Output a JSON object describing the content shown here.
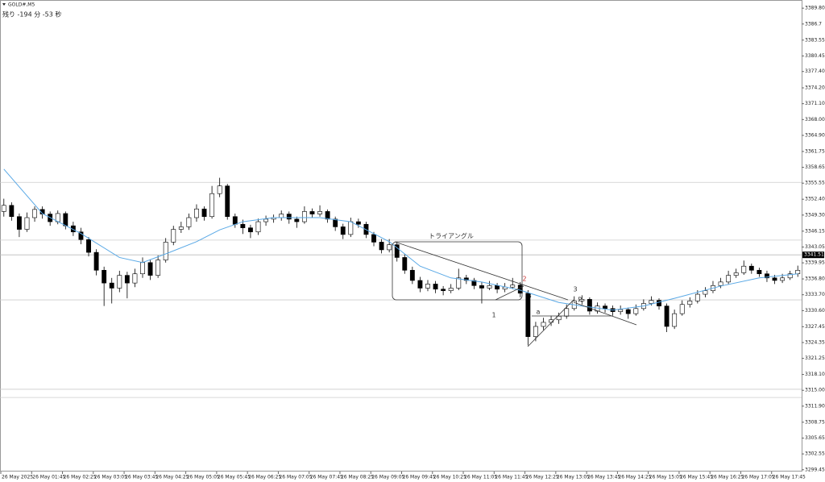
{
  "header": {
    "symbol": "GOLD#,M5",
    "countdown": "残り -194 分 -53 秒"
  },
  "chart_data": {
    "type": "candlestick",
    "ylim": [
      3299.1,
      3391.4
    ],
    "xlim": [
      -0.5,
      103.5
    ],
    "yticks": [
      {
        "value": 3389.8,
        "label": "3389.80"
      },
      3386.7,
      3383.55,
      3380.45,
      {
        "value": 3377.4,
        "label": "3377.40"
      },
      {
        "value": 3374.2,
        "label": "3374.20"
      },
      {
        "value": 3371.1,
        "label": "3371.10"
      },
      {
        "value": 3368,
        "label": "3368.00"
      },
      {
        "value": 3364.9,
        "label": "3364.90"
      },
      3361.75,
      3358.65,
      3355.55,
      {
        "value": 3352.4,
        "label": "3352.40"
      },
      {
        "value": 3349.3,
        "label": "3349.30"
      },
      3346.15,
      3343.05,
      3339.95,
      {
        "value": 3336.8,
        "label": "3336.80"
      },
      {
        "value": 3333.7,
        "label": "3333.70"
      },
      {
        "value": 3330.6,
        "label": "3330.60"
      },
      3327.45,
      3324.35,
      3321.25,
      {
        "value": 3318.1,
        "label": "3318.10"
      },
      {
        "value": 3315,
        "label": "3315.00"
      },
      {
        "value": 3311.9,
        "label": "3311.90"
      },
      3308.75,
      3305.65,
      3302.55,
      3299.45
    ],
    "xticks": [
      {
        "value": 0,
        "label": "26 May 2025"
      },
      {
        "value": 4,
        "label": "26 May 01:45"
      },
      {
        "value": 8,
        "label": "26 May 02:25"
      },
      {
        "value": 12,
        "label": "26 May 03:05"
      },
      {
        "value": 16,
        "label": "26 May 03:45"
      },
      {
        "value": 20,
        "label": "26 May 04:25"
      },
      {
        "value": 24,
        "label": "26 May 05:05"
      },
      {
        "value": 28,
        "label": "26 May 05:45"
      },
      {
        "value": 32,
        "label": "26 May 06:25"
      },
      {
        "value": 36,
        "label": "26 May 07:05"
      },
      {
        "value": 40,
        "label": "26 May 07:45"
      },
      {
        "value": 44,
        "label": "26 May 08:25"
      },
      {
        "value": 48,
        "label": "26 May 09:05"
      },
      {
        "value": 52,
        "label": "26 May 09:45"
      },
      {
        "value": 56,
        "label": "26 May 10:25"
      },
      {
        "value": 60,
        "label": "26 May 11:05"
      },
      {
        "value": 64,
        "label": "26 May 11:45"
      },
      {
        "value": 68,
        "label": "26 May 12:25"
      },
      {
        "value": 72,
        "label": "26 May 13:05"
      },
      {
        "value": 76,
        "label": "26 May 13:45"
      },
      {
        "value": 80,
        "label": "26 May 14:25"
      },
      {
        "value": 84,
        "label": "26 May 15:05"
      },
      {
        "value": 88,
        "label": "26 May 15:45"
      },
      {
        "value": 92,
        "label": "26 May 16:25"
      },
      {
        "value": 96,
        "label": "26 May 17:05"
      },
      {
        "value": 100,
        "label": "26 May 17:45"
      }
    ],
    "ohlc": [
      [
        3350.0,
        3352.5,
        3349.0,
        3351.2
      ],
      [
        3351.2,
        3351.8,
        3348.2,
        3349.0
      ],
      [
        3349.0,
        3349.6,
        3345.0,
        3346.5
      ],
      [
        3346.5,
        3349.8,
        3346.0,
        3348.8
      ],
      [
        3348.8,
        3351.0,
        3348.0,
        3350.4
      ],
      [
        3350.4,
        3351.0,
        3348.6,
        3349.5
      ],
      [
        3349.5,
        3350.0,
        3347.2,
        3348.0
      ],
      [
        3348.0,
        3350.2,
        3347.5,
        3349.6
      ],
      [
        3349.6,
        3350.0,
        3346.5,
        3347.2
      ],
      [
        3347.2,
        3348.0,
        3345.2,
        3346.0
      ],
      [
        3346.0,
        3346.8,
        3343.6,
        3344.5
      ],
      [
        3344.5,
        3345.0,
        3341.2,
        3342.0
      ],
      [
        3342.0,
        3342.6,
        3337.5,
        3338.5
      ],
      [
        3338.5,
        3339.2,
        3331.5,
        3336.0
      ],
      [
        3336.0,
        3337.0,
        3332.0,
        3335.0
      ],
      [
        3335.0,
        3338.4,
        3334.2,
        3337.5
      ],
      [
        3337.5,
        3338.2,
        3333.0,
        3336.0
      ],
      [
        3336.0,
        3338.8,
        3335.2,
        3337.8
      ],
      [
        3337.8,
        3341.0,
        3337.0,
        3340.0
      ],
      [
        3340.0,
        3340.6,
        3336.6,
        3337.5
      ],
      [
        3337.5,
        3341.4,
        3337.0,
        3340.5
      ],
      [
        3340.5,
        3344.8,
        3340.0,
        3344.0
      ],
      [
        3344.0,
        3347.2,
        3343.4,
        3346.5
      ],
      [
        3346.5,
        3348.0,
        3345.8,
        3347.0
      ],
      [
        3347.0,
        3349.6,
        3346.4,
        3348.8
      ],
      [
        3348.8,
        3351.4,
        3348.0,
        3350.5
      ],
      [
        3350.5,
        3351.0,
        3348.2,
        3349.0
      ],
      [
        3349.0,
        3355.0,
        3348.6,
        3353.5
      ],
      [
        3353.5,
        3356.6,
        3352.8,
        3355.0
      ],
      [
        3355.0,
        3355.4,
        3348.4,
        3349.0
      ],
      [
        3349.0,
        3349.6,
        3346.8,
        3347.5
      ],
      [
        3347.5,
        3348.4,
        3345.6,
        3346.8
      ],
      [
        3346.8,
        3347.4,
        3344.8,
        3346.0
      ],
      [
        3346.0,
        3348.6,
        3345.4,
        3348.0
      ],
      [
        3348.0,
        3349.2,
        3347.2,
        3348.5
      ],
      [
        3348.5,
        3349.4,
        3347.8,
        3348.8
      ],
      [
        3348.8,
        3350.2,
        3348.2,
        3349.5
      ],
      [
        3349.5,
        3350.0,
        3347.6,
        3348.5
      ],
      [
        3348.5,
        3349.0,
        3346.8,
        3348.0
      ],
      [
        3348.0,
        3351.0,
        3347.6,
        3350.0
      ],
      [
        3350.0,
        3350.6,
        3348.8,
        3349.5
      ],
      [
        3349.5,
        3351.2,
        3349.0,
        3350.0
      ],
      [
        3350.0,
        3350.4,
        3347.8,
        3348.5
      ],
      [
        3348.5,
        3349.0,
        3346.2,
        3347.0
      ],
      [
        3347.0,
        3347.6,
        3344.6,
        3345.5
      ],
      [
        3345.5,
        3348.8,
        3345.0,
        3348.0
      ],
      [
        3348.0,
        3348.6,
        3346.8,
        3347.5
      ],
      [
        3347.5,
        3348.0,
        3344.8,
        3345.5
      ],
      [
        3345.5,
        3346.0,
        3343.2,
        3344.0
      ],
      [
        3344.0,
        3344.6,
        3341.8,
        3342.5
      ],
      [
        3342.5,
        3344.6,
        3342.0,
        3343.5
      ],
      [
        3343.5,
        3344.0,
        3340.2,
        3341.0
      ],
      [
        3341.0,
        3341.6,
        3337.8,
        3338.5
      ],
      [
        3338.5,
        3339.2,
        3335.8,
        3336.5
      ],
      [
        3336.5,
        3337.2,
        3334.2,
        3335.0
      ],
      [
        3335.0,
        3336.6,
        3334.4,
        3335.8
      ],
      [
        3335.8,
        3336.4,
        3334.0,
        3334.8
      ],
      [
        3334.8,
        3335.4,
        3333.6,
        3334.5
      ],
      [
        3334.5,
        3335.8,
        3334.0,
        3335.0
      ],
      [
        3335.0,
        3338.8,
        3334.6,
        3337.0
      ],
      [
        3337.0,
        3337.6,
        3335.8,
        3336.5
      ],
      [
        3336.5,
        3337.0,
        3334.8,
        3335.5
      ],
      [
        3335.5,
        3336.2,
        3332.0,
        3335.0
      ],
      [
        3335.0,
        3336.4,
        3334.6,
        3335.5
      ],
      [
        3335.5,
        3336.0,
        3334.0,
        3334.8
      ],
      [
        3334.8,
        3336.0,
        3334.2,
        3335.2
      ],
      [
        3335.2,
        3337.0,
        3334.8,
        3335.6
      ],
      [
        3335.6,
        3336.2,
        3333.2,
        3334.0
      ],
      [
        3334.0,
        3334.6,
        3323.8,
        3325.5
      ],
      [
        3325.5,
        3328.4,
        3324.6,
        3327.5
      ],
      [
        3327.5,
        3329.2,
        3326.8,
        3328.3
      ],
      [
        3328.3,
        3329.6,
        3327.6,
        3328.8
      ],
      [
        3328.8,
        3330.2,
        3328.0,
        3329.5
      ],
      [
        3329.5,
        3331.8,
        3329.0,
        3331.0
      ],
      [
        3331.0,
        3333.4,
        3330.6,
        3332.5
      ],
      [
        3332.5,
        3333.6,
        3331.8,
        3332.8
      ],
      [
        3332.8,
        3333.2,
        3329.8,
        3330.5
      ],
      [
        3330.5,
        3332.2,
        3330.0,
        3331.5
      ],
      [
        3331.5,
        3332.0,
        3330.2,
        3331.0
      ],
      [
        3331.0,
        3331.6,
        3329.6,
        3330.4
      ],
      [
        3330.4,
        3331.6,
        3329.8,
        3330.8
      ],
      [
        3330.8,
        3331.2,
        3329.0,
        3330.0
      ],
      [
        3330.0,
        3331.8,
        3329.6,
        3331.0
      ],
      [
        3331.0,
        3332.8,
        3330.6,
        3332.0
      ],
      [
        3332.0,
        3333.4,
        3331.6,
        3332.6
      ],
      [
        3332.6,
        3333.0,
        3330.8,
        3331.5
      ],
      [
        3331.5,
        3332.0,
        3326.4,
        3327.5
      ],
      [
        3327.5,
        3330.8,
        3327.0,
        3330.0
      ],
      [
        3330.0,
        3332.6,
        3329.6,
        3331.8
      ],
      [
        3331.8,
        3333.2,
        3331.2,
        3332.5
      ],
      [
        3332.5,
        3334.6,
        3332.0,
        3333.8
      ],
      [
        3333.8,
        3335.2,
        3333.2,
        3334.5
      ],
      [
        3334.5,
        3336.4,
        3334.0,
        3335.5
      ],
      [
        3335.5,
        3337.0,
        3335.0,
        3336.2
      ],
      [
        3336.2,
        3338.4,
        3335.8,
        3337.5
      ],
      [
        3337.5,
        3338.8,
        3337.0,
        3338.0
      ],
      [
        3338.0,
        3340.4,
        3337.6,
        3339.3
      ],
      [
        3339.3,
        3339.8,
        3337.8,
        3338.5
      ],
      [
        3338.5,
        3339.0,
        3337.2,
        3337.8
      ],
      [
        3337.8,
        3338.4,
        3336.2,
        3337.0
      ],
      [
        3337.0,
        3337.6,
        3335.8,
        3336.5
      ],
      [
        3336.5,
        3337.8,
        3336.0,
        3337.0
      ],
      [
        3337.0,
        3338.4,
        3336.6,
        3337.8
      ],
      [
        3337.8,
        3339.4,
        3337.2,
        3338.5
      ]
    ],
    "ma": {
      "color": "#5aa9e6",
      "x": [
        0,
        5,
        10,
        15,
        18,
        21,
        25,
        28,
        31,
        35,
        41,
        45,
        50,
        54,
        58,
        62,
        67,
        72,
        75,
        79,
        83,
        87,
        93,
        98,
        103
      ],
      "values": [
        3358.3,
        3349.6,
        3345.7,
        3341.0,
        3340.0,
        3341.7,
        3344.1,
        3346.4,
        3348.0,
        3348.8,
        3348.8,
        3348.0,
        3344.1,
        3339.3,
        3337.0,
        3336.2,
        3334.6,
        3332.2,
        3331.5,
        3330.7,
        3331.5,
        3333.0,
        3335.4,
        3337.0,
        3337.8
      ]
    },
    "levels": [
      3355.7,
      3344.4,
      3332.7,
      3315.2,
      3313.6
    ],
    "current_price": 3341.51,
    "annotations": {
      "box": "トライアングル",
      "p1": "1",
      "p2": "2",
      "p3": "3",
      "b": "B",
      "r": "R",
      "a": "a"
    }
  }
}
